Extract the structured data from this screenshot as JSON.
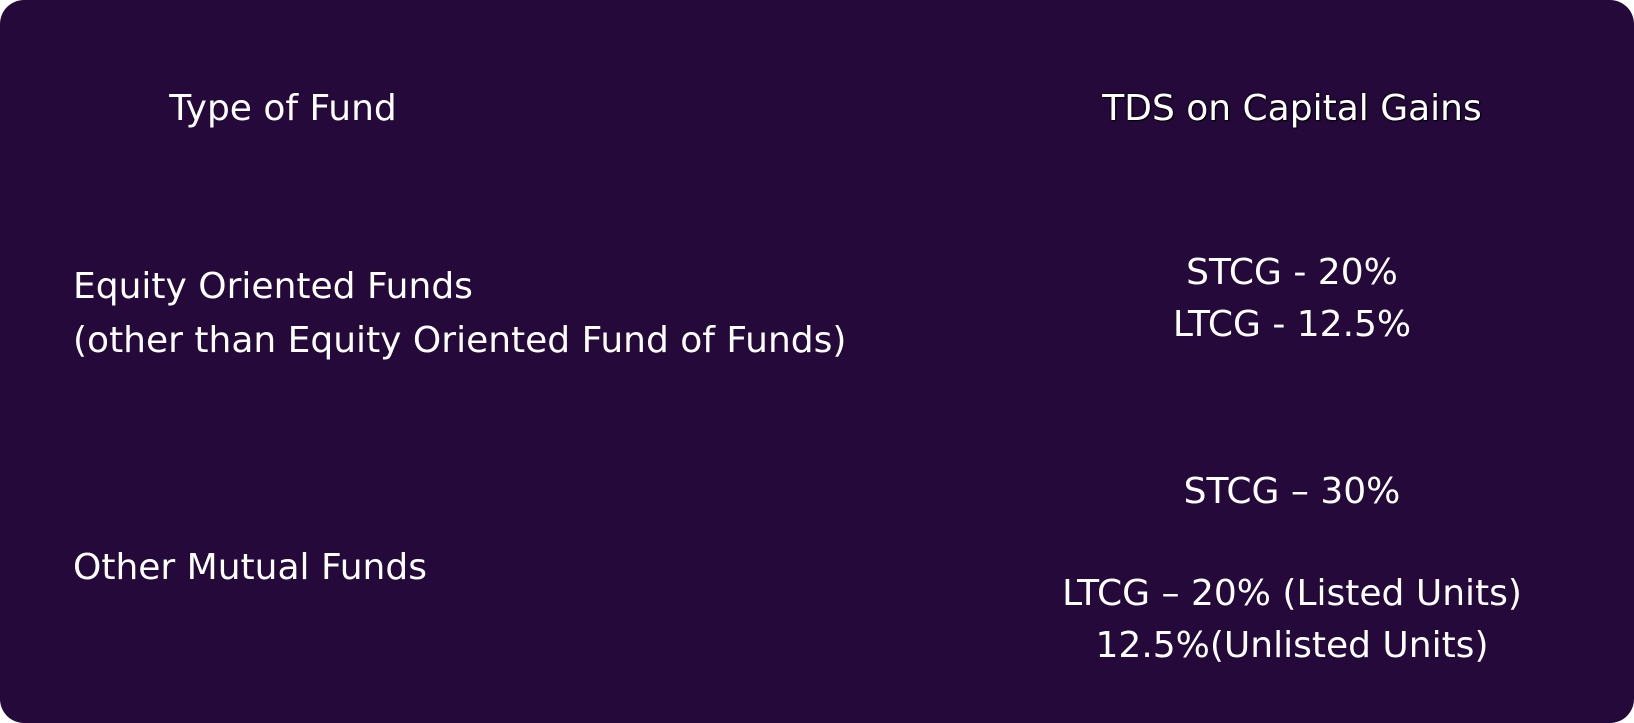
{
  "table": {
    "header": [
      "Type of Fund",
      "TDS on Capital Gains"
    ],
    "rows": [
      [
        [
          "Equity Oriented Funds",
          "(other than Equity Oriented Fund of Funds)"
        ],
        [
          "STCG - 20%",
          "LTCG - 12.5%"
        ]
      ],
      [
        [
          "Other Mutual Funds"
        ],
        [
          "STCG – 30%",
          "LTCG – 20% (Listed Units)",
          "12.5%(Unlisted Units)"
        ]
      ]
    ]
  }
}
